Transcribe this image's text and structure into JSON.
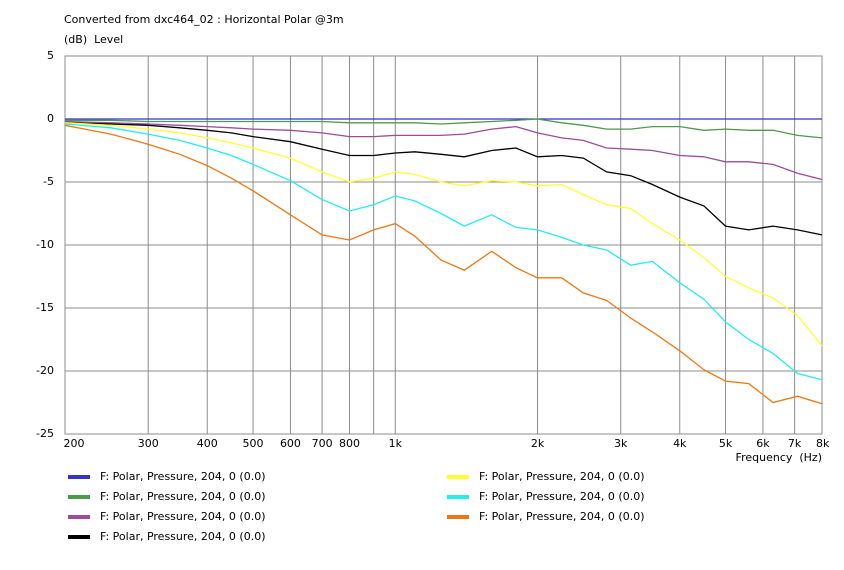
{
  "chart_data": {
    "type": "line",
    "title": "Converted from dxc464_02 : Horizontal Polar @3m",
    "y_label": "(dB)  Level",
    "x_label": "Frequency  (Hz)",
    "x_scale": "log",
    "grid": true,
    "x": [
      200,
      250,
      300,
      350,
      400,
      450,
      500,
      600,
      700,
      800,
      900,
      1000,
      1100,
      1250,
      1400,
      1600,
      1800,
      2000,
      2250,
      2500,
      2800,
      3150,
      3500,
      4000,
      4500,
      5000,
      5600,
      6300,
      7100,
      8000
    ],
    "xlim": [
      200,
      8000
    ],
    "xticks": [
      200,
      300,
      400,
      500,
      600,
      700,
      800,
      {
        "value": 1000,
        "label": "1k"
      },
      {
        "value": 2000,
        "label": "2k"
      },
      {
        "value": 3000,
        "label": "3k"
      },
      {
        "value": 4000,
        "label": "4k"
      },
      {
        "value": 5000,
        "label": "5k"
      },
      {
        "value": 6000,
        "label": "6k"
      },
      {
        "value": 7000,
        "label": "7k"
      },
      {
        "value": 8000,
        "label": "8k"
      }
    ],
    "minor_xticks": [
      900
    ],
    "ylim": [
      -25,
      5
    ],
    "yticks": [
      5,
      0,
      -5,
      -10,
      -15,
      -20,
      -25
    ],
    "series": [
      {
        "name": "F: Polar, Pressure, 204, 0 (0.0)",
        "color": "#3333cc",
        "values": [
          0,
          0,
          0,
          0,
          0,
          0,
          0,
          0,
          0,
          0,
          0,
          0,
          0,
          0,
          0,
          0,
          0,
          0,
          0,
          0,
          0,
          0,
          0,
          0,
          0,
          0,
          0,
          0,
          0,
          0
        ]
      },
      {
        "name": "F: Polar, Pressure, 204, 0 (0.0)",
        "color": "#4c9a4c",
        "values": [
          -0.1,
          -0.1,
          -0.2,
          -0.2,
          -0.2,
          -0.2,
          -0.2,
          -0.2,
          -0.2,
          -0.3,
          -0.3,
          -0.3,
          -0.3,
          -0.4,
          -0.3,
          -0.2,
          -0.1,
          0,
          -0.3,
          -0.5,
          -0.8,
          -0.8,
          -0.6,
          -0.6,
          -0.9,
          -0.8,
          -0.9,
          -0.9,
          -1.3,
          -1.5
        ]
      },
      {
        "name": "F: Polar, Pressure, 204, 0 (0.0)",
        "color": "#9b4c9b",
        "values": [
          -0.2,
          -0.3,
          -0.4,
          -0.5,
          -0.6,
          -0.7,
          -0.8,
          -0.9,
          -1.1,
          -1.4,
          -1.4,
          -1.3,
          -1.3,
          -1.3,
          -1.2,
          -0.8,
          -0.6,
          -1.1,
          -1.5,
          -1.7,
          -2.3,
          -2.4,
          -2.5,
          -2.9,
          -3.0,
          -3.4,
          -3.4,
          -3.6,
          -4.3,
          -4.8
        ]
      },
      {
        "name": "F: Polar, Pressure, 204, 0 (0.0)",
        "color": "#000000",
        "values": [
          -0.3,
          -0.4,
          -0.5,
          -0.7,
          -0.9,
          -1.1,
          -1.4,
          -1.8,
          -2.4,
          -2.9,
          -2.9,
          -2.7,
          -2.6,
          -2.8,
          -3.0,
          -2.5,
          -2.3,
          -3.0,
          -2.9,
          -3.1,
          -4.2,
          -4.5,
          -5.2,
          -6.2,
          -6.9,
          -8.5,
          -8.8,
          -8.5,
          -8.8,
          -9.2
        ]
      },
      {
        "name": "F: Polar, Pressure, 204, 0 (0.0)",
        "color": "#ffff33",
        "values": [
          -0.3,
          -0.5,
          -0.8,
          -1.1,
          -1.5,
          -1.9,
          -2.3,
          -3.1,
          -4.2,
          -5.0,
          -4.7,
          -4.2,
          -4.4,
          -5.0,
          -5.3,
          -4.9,
          -5.0,
          -5.3,
          -5.2,
          -6.0,
          -6.8,
          -7.1,
          -8.3,
          -9.6,
          -11.0,
          -12.5,
          -13.4,
          -14.2,
          -15.6,
          -18.0
        ]
      },
      {
        "name": "F: Polar, Pressure, 204, 0 (0.0)",
        "color": "#22eeee",
        "values": [
          -0.4,
          -0.7,
          -1.2,
          -1.7,
          -2.3,
          -2.9,
          -3.6,
          -4.9,
          -6.4,
          -7.3,
          -6.8,
          -6.1,
          -6.5,
          -7.5,
          -8.5,
          -7.6,
          -8.6,
          -8.8,
          -9.4,
          -10.0,
          -10.4,
          -11.6,
          -11.3,
          -13.0,
          -14.3,
          -16.1,
          -17.5,
          -18.6,
          -20.2,
          -20.7
        ]
      },
      {
        "name": "F: Polar, Pressure, 204, 0 (0.0)",
        "color": "#ee7711",
        "values": [
          -0.5,
          -1.2,
          -2.0,
          -2.8,
          -3.7,
          -4.7,
          -5.7,
          -7.6,
          -9.2,
          -9.6,
          -8.8,
          -8.3,
          -9.3,
          -11.2,
          -12.0,
          -10.5,
          -11.8,
          -12.6,
          -12.6,
          -13.8,
          -14.4,
          -15.8,
          -16.9,
          -18.4,
          -19.9,
          -20.8,
          -21.0,
          -22.5,
          -22.0,
          -22.6
        ]
      }
    ]
  }
}
